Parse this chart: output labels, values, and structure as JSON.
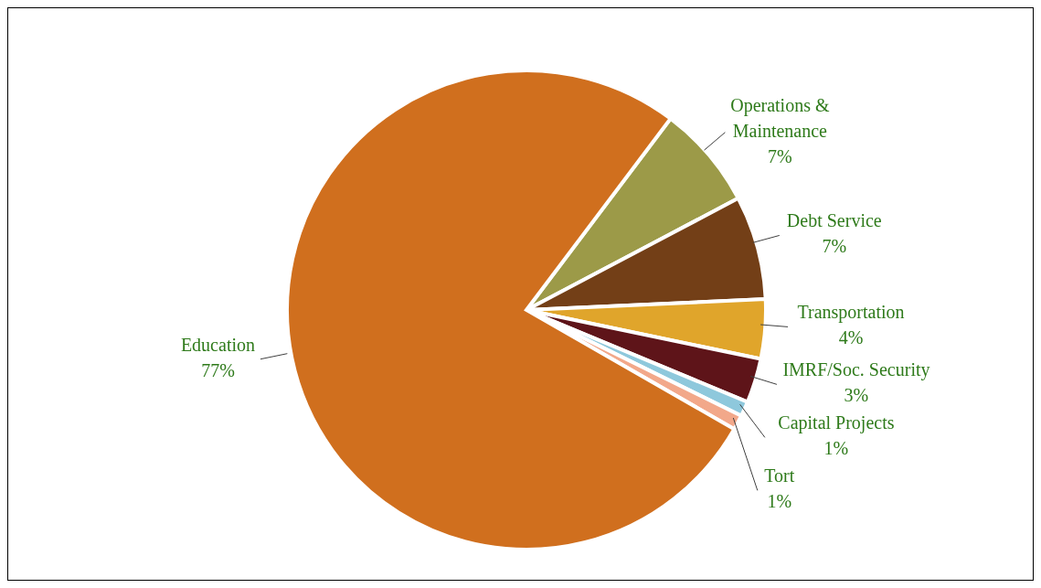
{
  "chart_data": {
    "type": "pie",
    "categories": [
      "Operations & Maintenance",
      "Debt Service",
      "Transportation",
      "IMRF/Soc. Security",
      "Capital Projects",
      "Tort",
      "Education"
    ],
    "values": [
      7,
      7,
      4,
      3,
      1,
      1,
      77
    ],
    "value_labels": [
      "7%",
      "7%",
      "4%",
      "3%",
      "1%",
      "1%",
      "77%"
    ],
    "colors": [
      "#9c9a48",
      "#733f17",
      "#e0a52b",
      "#5e1419",
      "#8ec8dc",
      "#f2a88a",
      "#d06f1e"
    ]
  }
}
